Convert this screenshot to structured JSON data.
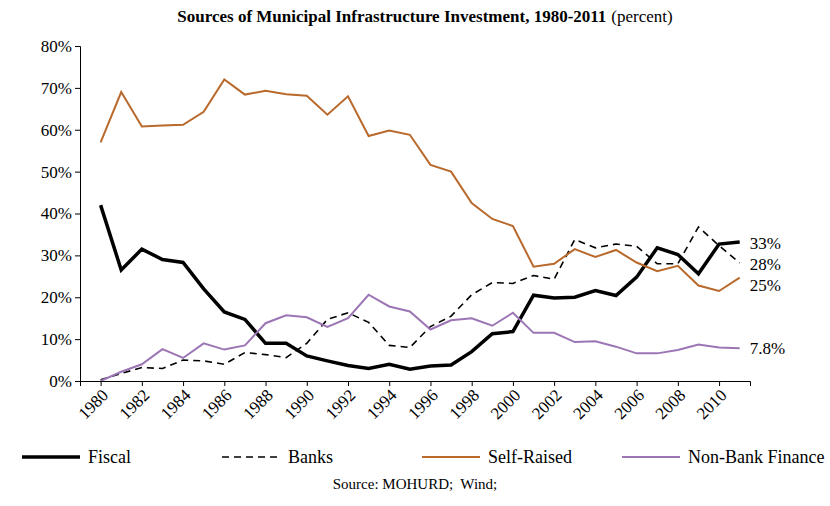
{
  "chart_data": {
    "type": "line",
    "title": "Sources of Municipal Infrastructure Investment, 1980-2011",
    "subtitle": "(percent)",
    "source": "Source: MOHURD;  Wind;",
    "x": [
      1980,
      1981,
      1982,
      1983,
      1984,
      1985,
      1986,
      1987,
      1988,
      1989,
      1990,
      1991,
      1992,
      1993,
      1994,
      1995,
      1996,
      1997,
      1998,
      1999,
      2000,
      2001,
      2002,
      2003,
      2004,
      2005,
      2006,
      2007,
      2008,
      2009,
      2010,
      2011
    ],
    "xlim": [
      1979,
      2011.5
    ],
    "xticks": [
      1980,
      1982,
      1984,
      1986,
      1988,
      1990,
      1992,
      1994,
      1996,
      1998,
      2000,
      2002,
      2004,
      2006,
      2008,
      2010
    ],
    "ylim": [
      0,
      80
    ],
    "yticks": [
      {
        "value": 0,
        "label": "0%"
      },
      {
        "value": 10,
        "label": "10%"
      },
      {
        "value": 20,
        "label": "20%"
      },
      {
        "value": 30,
        "label": "30%"
      },
      {
        "value": 40,
        "label": "40%"
      },
      {
        "value": 50,
        "label": "50%"
      },
      {
        "value": 60,
        "label": "60%"
      },
      {
        "value": 70,
        "label": "70%"
      },
      {
        "value": 80,
        "label": "80%"
      }
    ],
    "grid": false,
    "legend": "bottom",
    "series": [
      {
        "name": "Fiscal",
        "color": "#000000",
        "line_style": "solid",
        "values": [
          42,
          26.5,
          31.5,
          29,
          28.3,
          22,
          16.5,
          14.7,
          9,
          9,
          6,
          4.8,
          3.7,
          3,
          4,
          2.8,
          3.6,
          3.8,
          7,
          11.3,
          11.8,
          20.5,
          19.8,
          20,
          21.6,
          20.4,
          24.8,
          31.8,
          30.2,
          25.6,
          32.7,
          33.2
        ]
      },
      {
        "name": "Banks",
        "color": "#000000",
        "line_style": "dashed",
        "values": [
          0.3,
          1.8,
          3.2,
          3,
          5,
          4.8,
          4,
          6.8,
          6.3,
          5.6,
          9,
          14.7,
          16.3,
          14,
          8.5,
          8,
          13,
          15.5,
          20.6,
          23.5,
          23.3,
          25.2,
          24.3,
          33.8,
          31.8,
          32.7,
          32.2,
          28,
          28,
          36.8,
          32.3,
          28.2
        ]
      },
      {
        "name": "Self-Raised",
        "color": "#b8692b",
        "line_style": "solid",
        "values": [
          57,
          69,
          60.8,
          61,
          61.2,
          64.3,
          72,
          68.4,
          69.3,
          68.5,
          68.1,
          63.6,
          68,
          58.5,
          59.8,
          58.8,
          51.6,
          50,
          42.5,
          38.7,
          37,
          27.3,
          28,
          31.5,
          29.6,
          31.3,
          28.3,
          26.2,
          27.5,
          22.8,
          21.5,
          24.7
        ]
      },
      {
        "name": "Non-Bank Finance",
        "color": "#9c75b5",
        "line_style": "solid",
        "values": [
          0,
          2.2,
          4,
          7.6,
          5.5,
          9,
          7.5,
          8.5,
          13.8,
          15.7,
          15.2,
          12.9,
          15,
          20.6,
          17.8,
          16.6,
          12.3,
          14.5,
          15,
          13.2,
          16.3,
          11.5,
          11.5,
          9.3,
          9.5,
          8.2,
          6.6,
          6.6,
          7.4,
          8.7,
          8,
          7.8
        ]
      }
    ],
    "annotations": [
      {
        "text": "33%",
        "x": 2011,
        "y": 33
      },
      {
        "text": "28%",
        "x": 2011,
        "y": 28
      },
      {
        "text": "25%",
        "x": 2011,
        "y": 23
      },
      {
        "text": "7.8%",
        "x": 2011,
        "y": 7.8
      }
    ]
  }
}
